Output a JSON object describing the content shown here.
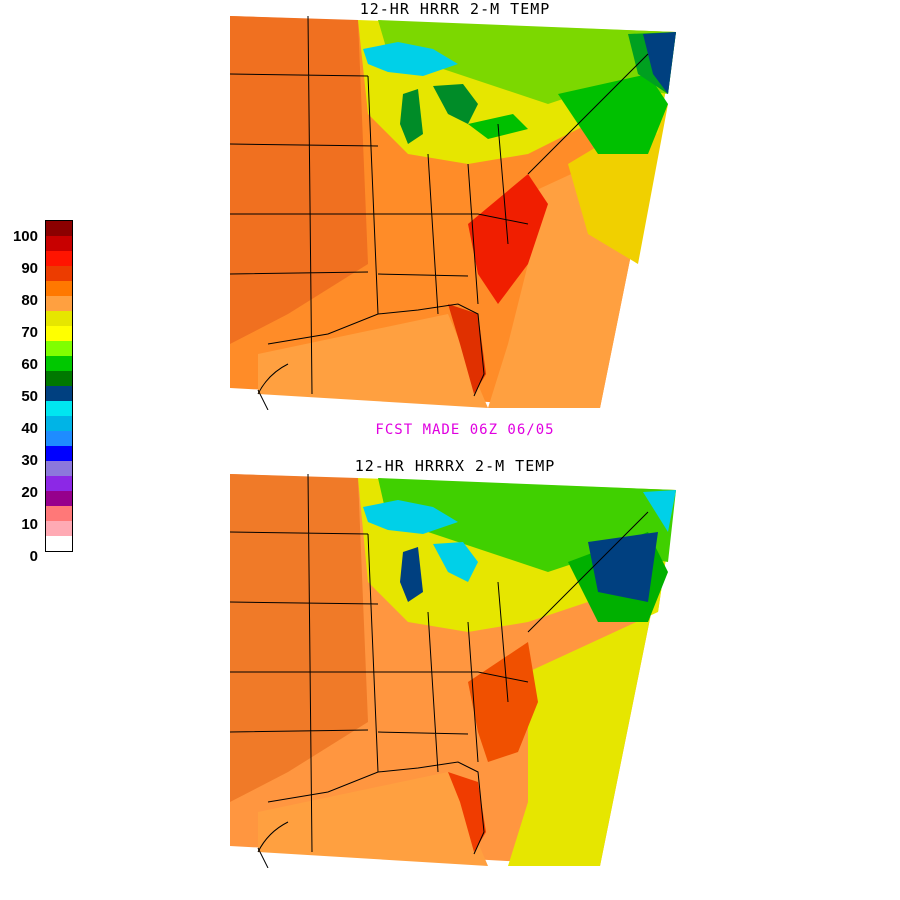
{
  "maps": {
    "top_title": "12-HR HRRR 2-M TEMP",
    "bottom_title": "12-HR HRRRX  2-M TEMP",
    "forecast_made": "FCST MADE 06Z  06/05"
  },
  "legend": {
    "labels": [
      "100",
      "90",
      "80",
      "70",
      "60",
      "50",
      "40",
      "30",
      "20",
      "10",
      "0"
    ],
    "colors": [
      "#8b0000",
      "#c80000",
      "#ff1400",
      "#ec3c00",
      "#ff7800",
      "#ffa040",
      "#e6e600",
      "#ffff00",
      "#80ff00",
      "#00c800",
      "#007800",
      "#004080",
      "#00e6f0",
      "#00b4e6",
      "#1e8cff",
      "#0000ff",
      "#8c78dc",
      "#8c28e6",
      "#96008c",
      "#ff7878",
      "#ffaab4",
      "#ffffff"
    ]
  }
}
